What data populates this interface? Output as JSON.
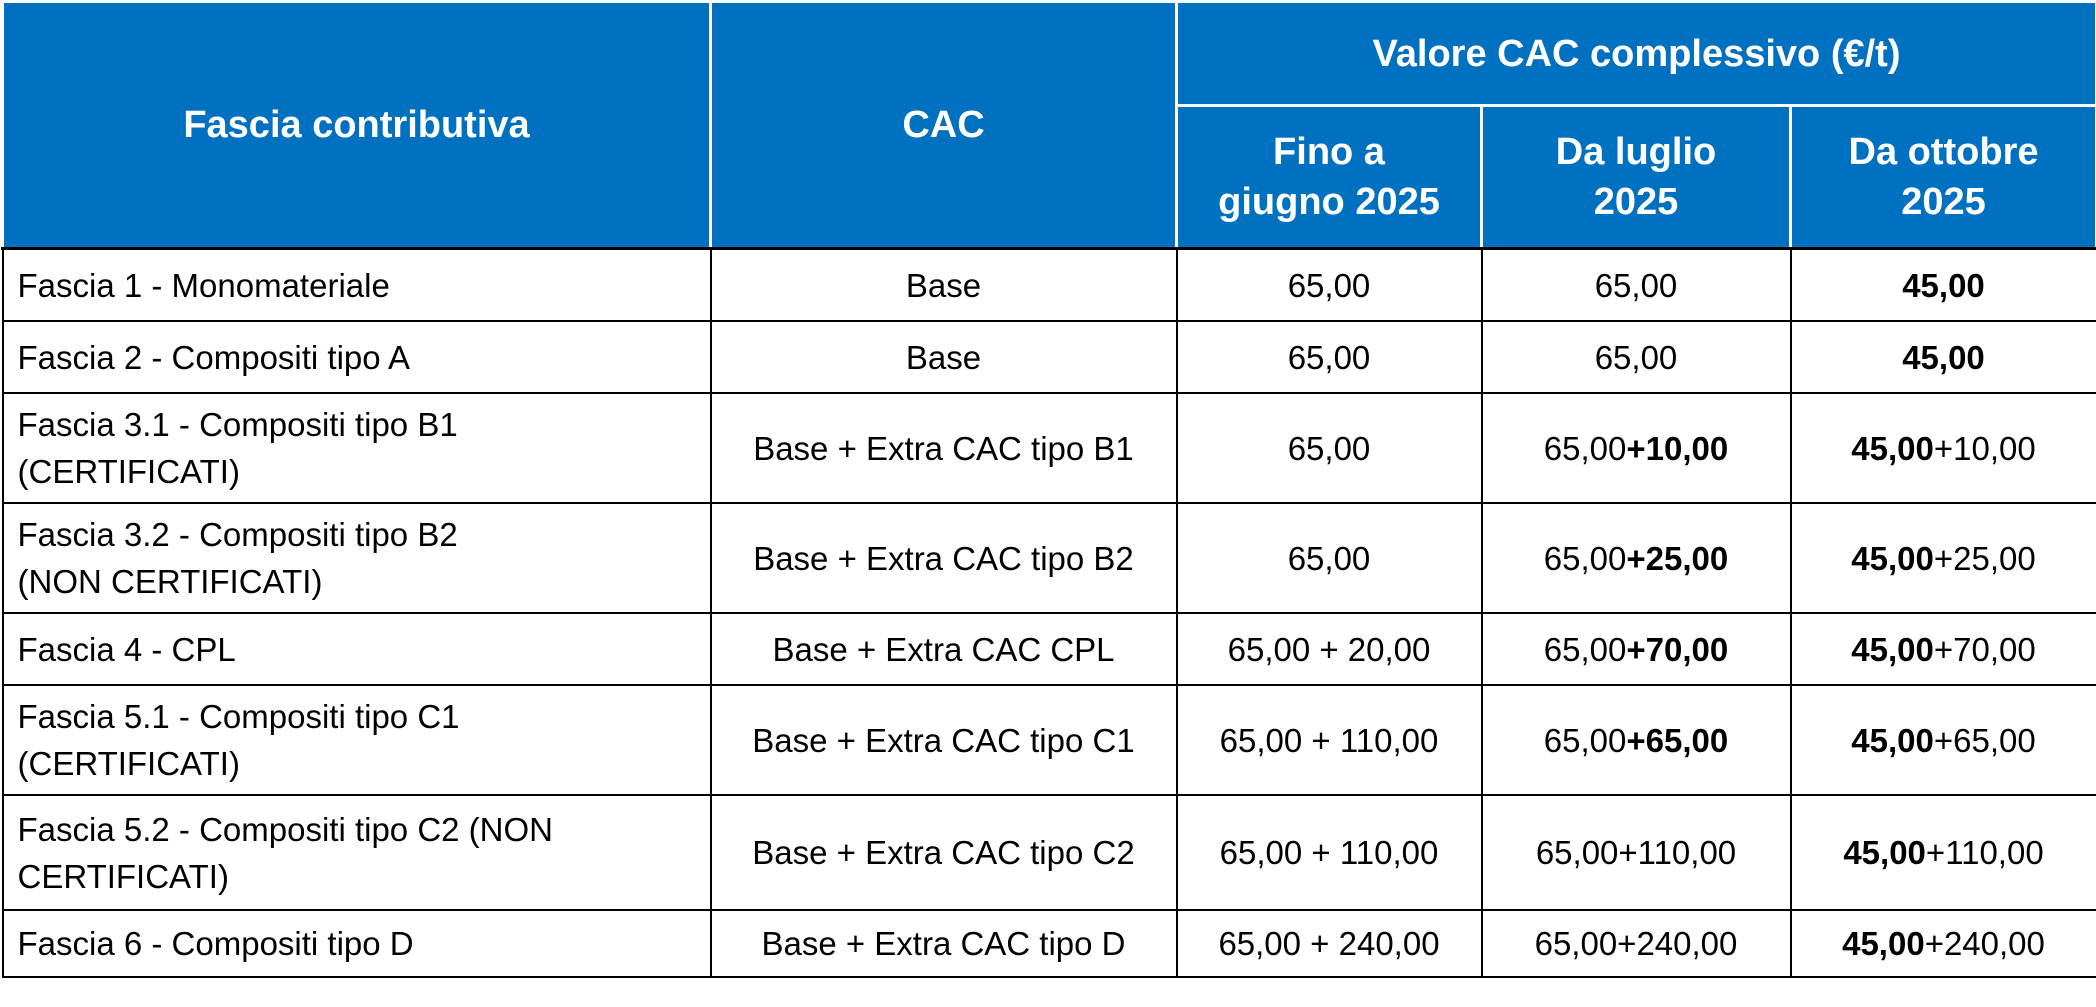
{
  "header": {
    "col_fascia": "Fascia contributiva",
    "col_cac": "CAC",
    "group_title": "Valore CAC complessivo (€/t)",
    "periods": [
      {
        "line1": "Fino a",
        "line2": "giugno 2025"
      },
      {
        "line1": "Da luglio",
        "line2": "2025"
      },
      {
        "line1": "Da ottobre",
        "line2": "2025"
      }
    ]
  },
  "rows": [
    {
      "fascia_line1": "Fascia 1 - Monomateriale",
      "fascia_line2": "",
      "cac": "Base",
      "fino_giugno": "65,00",
      "luglio_base": "65,00",
      "luglio_extra": "",
      "ottobre_base": "45,00",
      "ottobre_extra": ""
    },
    {
      "fascia_line1": "Fascia 2 - Compositi tipo A",
      "fascia_line2": "",
      "cac": "Base",
      "fino_giugno": "65,00",
      "luglio_base": "65,00",
      "luglio_extra": "",
      "ottobre_base": "45,00",
      "ottobre_extra": ""
    },
    {
      "fascia_line1": "Fascia 3.1 - Compositi tipo B1",
      "fascia_line2": "(CERTIFICATI)",
      "cac": "Base + Extra CAC tipo B1",
      "fino_giugno": "65,00",
      "luglio_base": "65,00",
      "luglio_extra": "+10,00",
      "ottobre_base": "45,00",
      "ottobre_extra": "+10,00"
    },
    {
      "fascia_line1": "Fascia 3.2 - Compositi tipo B2",
      "fascia_line2": "(NON CERTIFICATI)",
      "cac": "Base + Extra CAC tipo B2",
      "fino_giugno": "65,00",
      "luglio_base": "65,00",
      "luglio_extra": "+25,00",
      "ottobre_base": "45,00",
      "ottobre_extra": "+25,00"
    },
    {
      "fascia_line1": "Fascia 4 - CPL",
      "fascia_line2": "",
      "cac": "Base + Extra CAC CPL",
      "fino_giugno": "65,00 + 20,00",
      "luglio_base": "65,00",
      "luglio_extra": "+70,00",
      "ottobre_base": "45,00",
      "ottobre_extra": "+70,00"
    },
    {
      "fascia_line1": "Fascia 5.1 - Compositi tipo C1",
      "fascia_line2": "(CERTIFICATI)",
      "cac": "Base + Extra CAC tipo C1",
      "fino_giugno": "65,00 + 110,00",
      "luglio_base": "65,00",
      "luglio_extra": "+65,00",
      "ottobre_base": "45,00",
      "ottobre_extra": "+65,00"
    },
    {
      "fascia_line1": "Fascia 5.2 - Compositi tipo C2 (NON",
      "fascia_line2": "CERTIFICATI)",
      "cac": "Base + Extra CAC tipo C2",
      "fino_giugno": "65,00 + 110,00",
      "luglio_base": "65,00+110,00",
      "luglio_extra": "",
      "ottobre_base": "45,00",
      "ottobre_extra": "+110,00"
    },
    {
      "fascia_line1": "Fascia 6 - Compositi tipo D",
      "fascia_line2": "",
      "cac": "Base + Extra CAC tipo D",
      "fino_giugno": "65,00 + 240,00",
      "luglio_base": "65,00+240,00",
      "luglio_extra": "",
      "ottobre_base": "45,00",
      "ottobre_extra": "+240,00"
    }
  ]
}
